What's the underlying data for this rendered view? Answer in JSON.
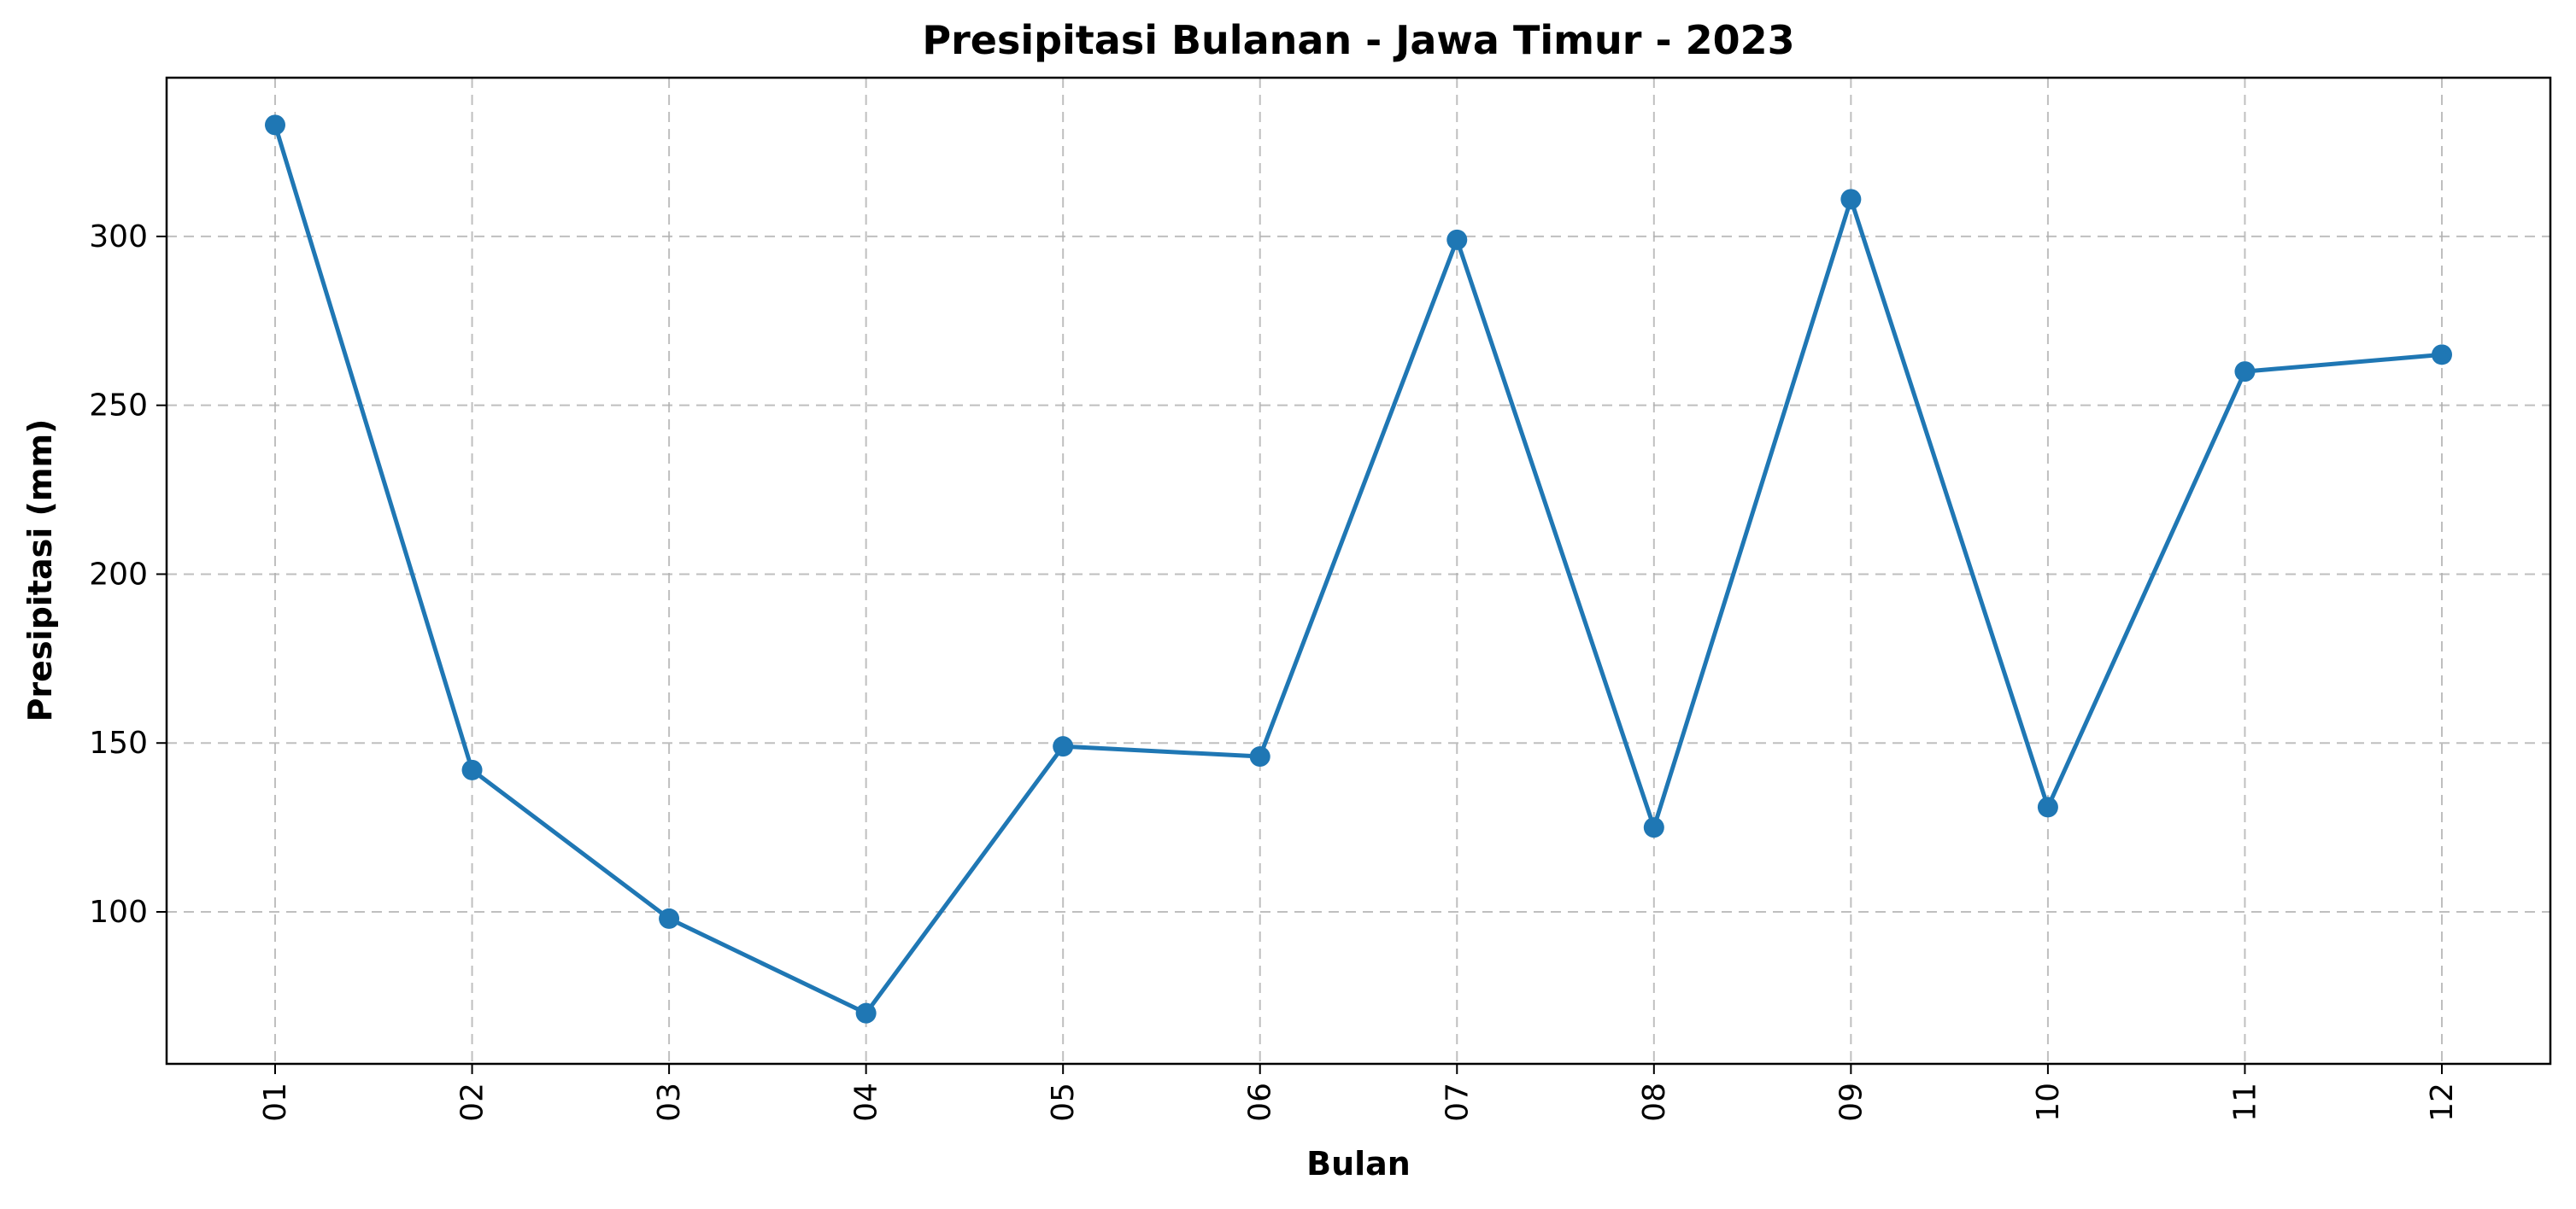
{
  "chart_data": {
    "type": "line",
    "title": "Presipitasi Bulanan - Jawa Timur - 2023",
    "xlabel": "Bulan",
    "ylabel": "Presipitasi (mm)",
    "categories": [
      "01",
      "02",
      "03",
      "04",
      "05",
      "06",
      "07",
      "08",
      "09",
      "10",
      "11",
      "12"
    ],
    "series": [
      {
        "values": [
          333,
          142,
          98,
          70,
          149,
          146,
          299,
          125,
          311,
          131,
          260,
          265
        ],
        "color": "#1f77b4"
      }
    ],
    "yticks": [
      100,
      150,
      200,
      250,
      300
    ],
    "ylim": [
      55,
      347
    ],
    "grid": true,
    "marker": "circle"
  }
}
